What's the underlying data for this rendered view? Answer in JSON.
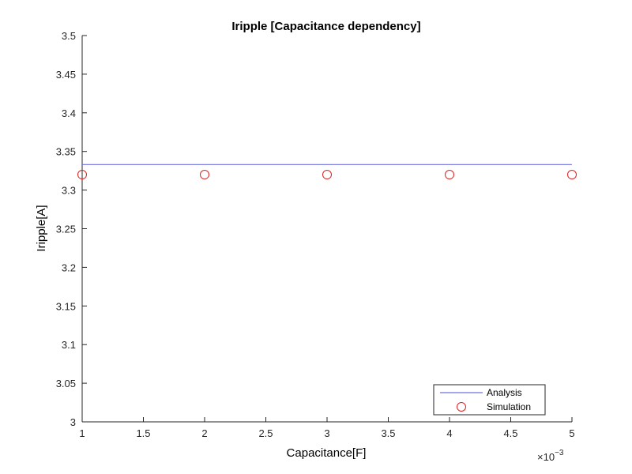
{
  "chart_data": {
    "type": "line",
    "title": "Iripple [Capacitance dependency]",
    "xlabel": "Capacitance[F]",
    "ylabel": "Iripple[A]",
    "x_exponent_label": "×10",
    "x_exponent_power": "−3",
    "xlim": [
      1,
      5
    ],
    "ylim": [
      3,
      3.5
    ],
    "x_ticks": [
      1,
      1.5,
      2,
      2.5,
      3,
      3.5,
      4,
      4.5,
      5
    ],
    "x_tick_labels": [
      "1",
      "1.5",
      "2",
      "2.5",
      "3",
      "3.5",
      "4",
      "4.5",
      "5"
    ],
    "y_ticks": [
      3,
      3.05,
      3.1,
      3.15,
      3.2,
      3.25,
      3.3,
      3.35,
      3.4,
      3.45,
      3.5
    ],
    "y_tick_labels": [
      "3",
      "3.05",
      "3.1",
      "3.15",
      "3.2",
      "3.25",
      "3.3",
      "3.35",
      "3.4",
      "3.45",
      "3.5"
    ],
    "grid": false,
    "legend_position": "bottom-right",
    "series": [
      {
        "name": "Analysis",
        "style": "line",
        "color": "#7070e0",
        "x": [
          1,
          5
        ],
        "y": [
          3.333,
          3.333
        ]
      },
      {
        "name": "Simulation",
        "style": "markers",
        "marker": "circle",
        "color": "#e02020",
        "x": [
          1,
          2,
          3,
          4,
          5
        ],
        "y": [
          3.32,
          3.32,
          3.32,
          3.32,
          3.32
        ]
      }
    ]
  }
}
